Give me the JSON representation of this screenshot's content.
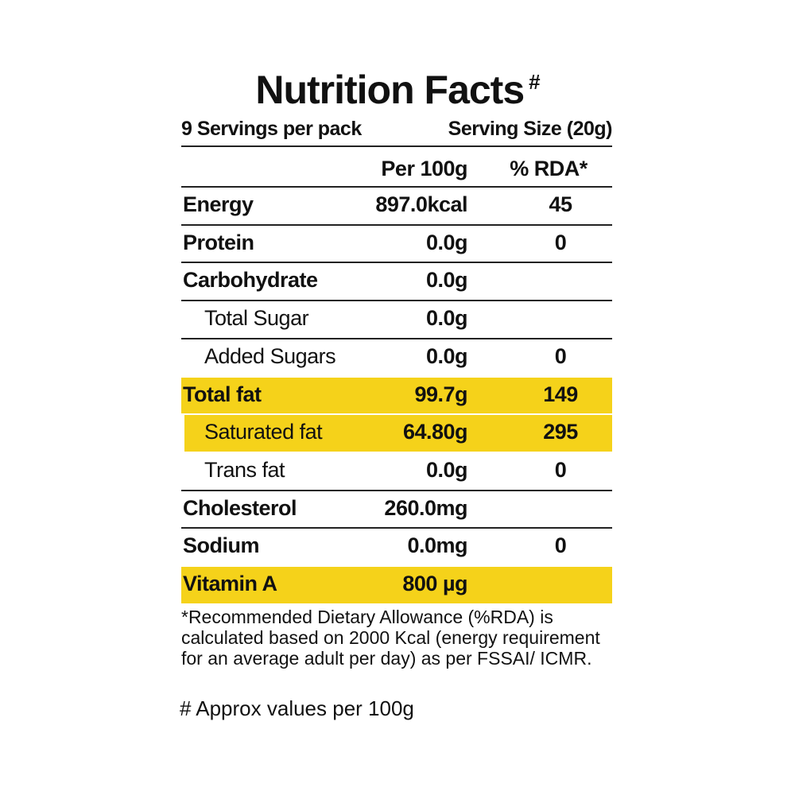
{
  "header": {
    "title": "Nutrition Facts",
    "title_mark": "#",
    "servings": "9 Servings per pack",
    "serving_size": "Serving Size (20g)"
  },
  "table": {
    "columns": [
      "Per 100g",
      "% RDA*"
    ],
    "highlight_color": "#f5d21a",
    "rows": [
      {
        "label": "Energy",
        "per_100g": "897.0kcal",
        "rda": "45"
      },
      {
        "label": "Protein",
        "per_100g": "0.0g",
        "rda": "0"
      },
      {
        "label": "Carbohydrate",
        "per_100g": "0.0g"
      },
      {
        "label": "Total Sugar",
        "per_100g": "0.0g",
        "indent": true
      },
      {
        "label": "Added Sugars",
        "per_100g": "0.0g",
        "rda": "0",
        "indent": true
      },
      {
        "label": "Total fat",
        "per_100g": "99.7g",
        "rda": "149",
        "highlight": true
      },
      {
        "label": "Saturated fat",
        "per_100g": "64.80g",
        "rda": "295",
        "indent": true,
        "highlight": true
      },
      {
        "label": "Trans fat",
        "per_100g": "0.0g",
        "rda": "0",
        "indent": true
      },
      {
        "label": "Cholesterol",
        "per_100g": "260.0mg"
      },
      {
        "label": "Sodium",
        "per_100g": "0.0mg",
        "rda": "0"
      },
      {
        "label": "Vitamin A",
        "per_100g": "800 µg",
        "highlight": true
      }
    ]
  },
  "footnotes": {
    "rda_note": "*Recommended Dietary Allowance (%RDA) is calculated based on 2000 Kcal (energy requirement for an average adult per day) as per FSSAI/ ICMR.",
    "approx_note": "# Approx values per 100g"
  }
}
